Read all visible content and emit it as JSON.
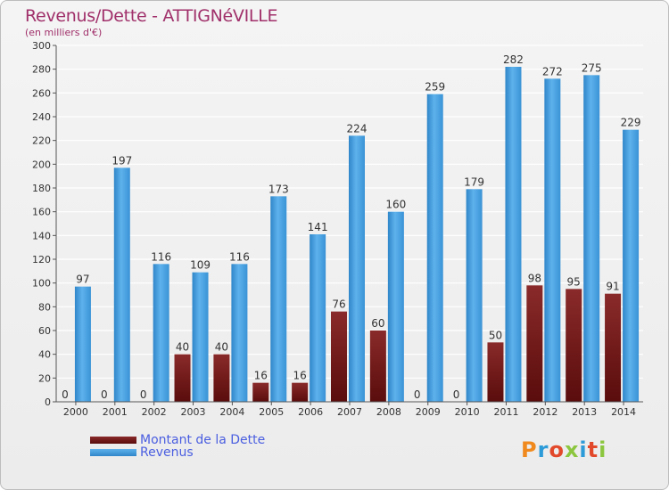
{
  "title": "Revenus/Dette - ATTIGNéVILLE",
  "subtitle": "(en milliers d'€)",
  "logo": {
    "text": "Proxiti",
    "colors": [
      "#f08a1e",
      "#2d9bd8",
      "#e2492b",
      "#8cc63f",
      "#2d9bd8",
      "#e2492b",
      "#8cc63f"
    ]
  },
  "colors": {
    "debt": "#7a1c1c",
    "revenue": "#4aa2e0",
    "grid": "#ffffff",
    "axis": "#555555",
    "text": "#333333"
  },
  "legend": [
    {
      "label": "Montant de la Dette",
      "color": "#7a1c1c"
    },
    {
      "label": "Revenus",
      "color": "#4aa2e0"
    }
  ],
  "chart_data": {
    "type": "bar",
    "title": "Revenus/Dette - ATTIGNéVILLE",
    "subtitle": "(en milliers d'€)",
    "categories": [
      "2000",
      "2001",
      "2002",
      "2003",
      "2004",
      "2005",
      "2006",
      "2007",
      "2008",
      "2009",
      "2010",
      "2011",
      "2012",
      "2013",
      "2014"
    ],
    "series": [
      {
        "name": "Montant de la Dette",
        "values": [
          0,
          0,
          0,
          40,
          40,
          16,
          16,
          76,
          60,
          0,
          0,
          50,
          98,
          95,
          91
        ]
      },
      {
        "name": "Revenus",
        "values": [
          97,
          197,
          116,
          109,
          116,
          173,
          141,
          224,
          160,
          259,
          179,
          282,
          272,
          275,
          229
        ]
      }
    ],
    "ylim": [
      0,
      300
    ],
    "yticks": [
      0,
      20,
      40,
      60,
      80,
      100,
      120,
      140,
      160,
      180,
      200,
      220,
      240,
      260,
      280,
      300
    ],
    "grid": true,
    "legend_position": "bottom-left"
  }
}
